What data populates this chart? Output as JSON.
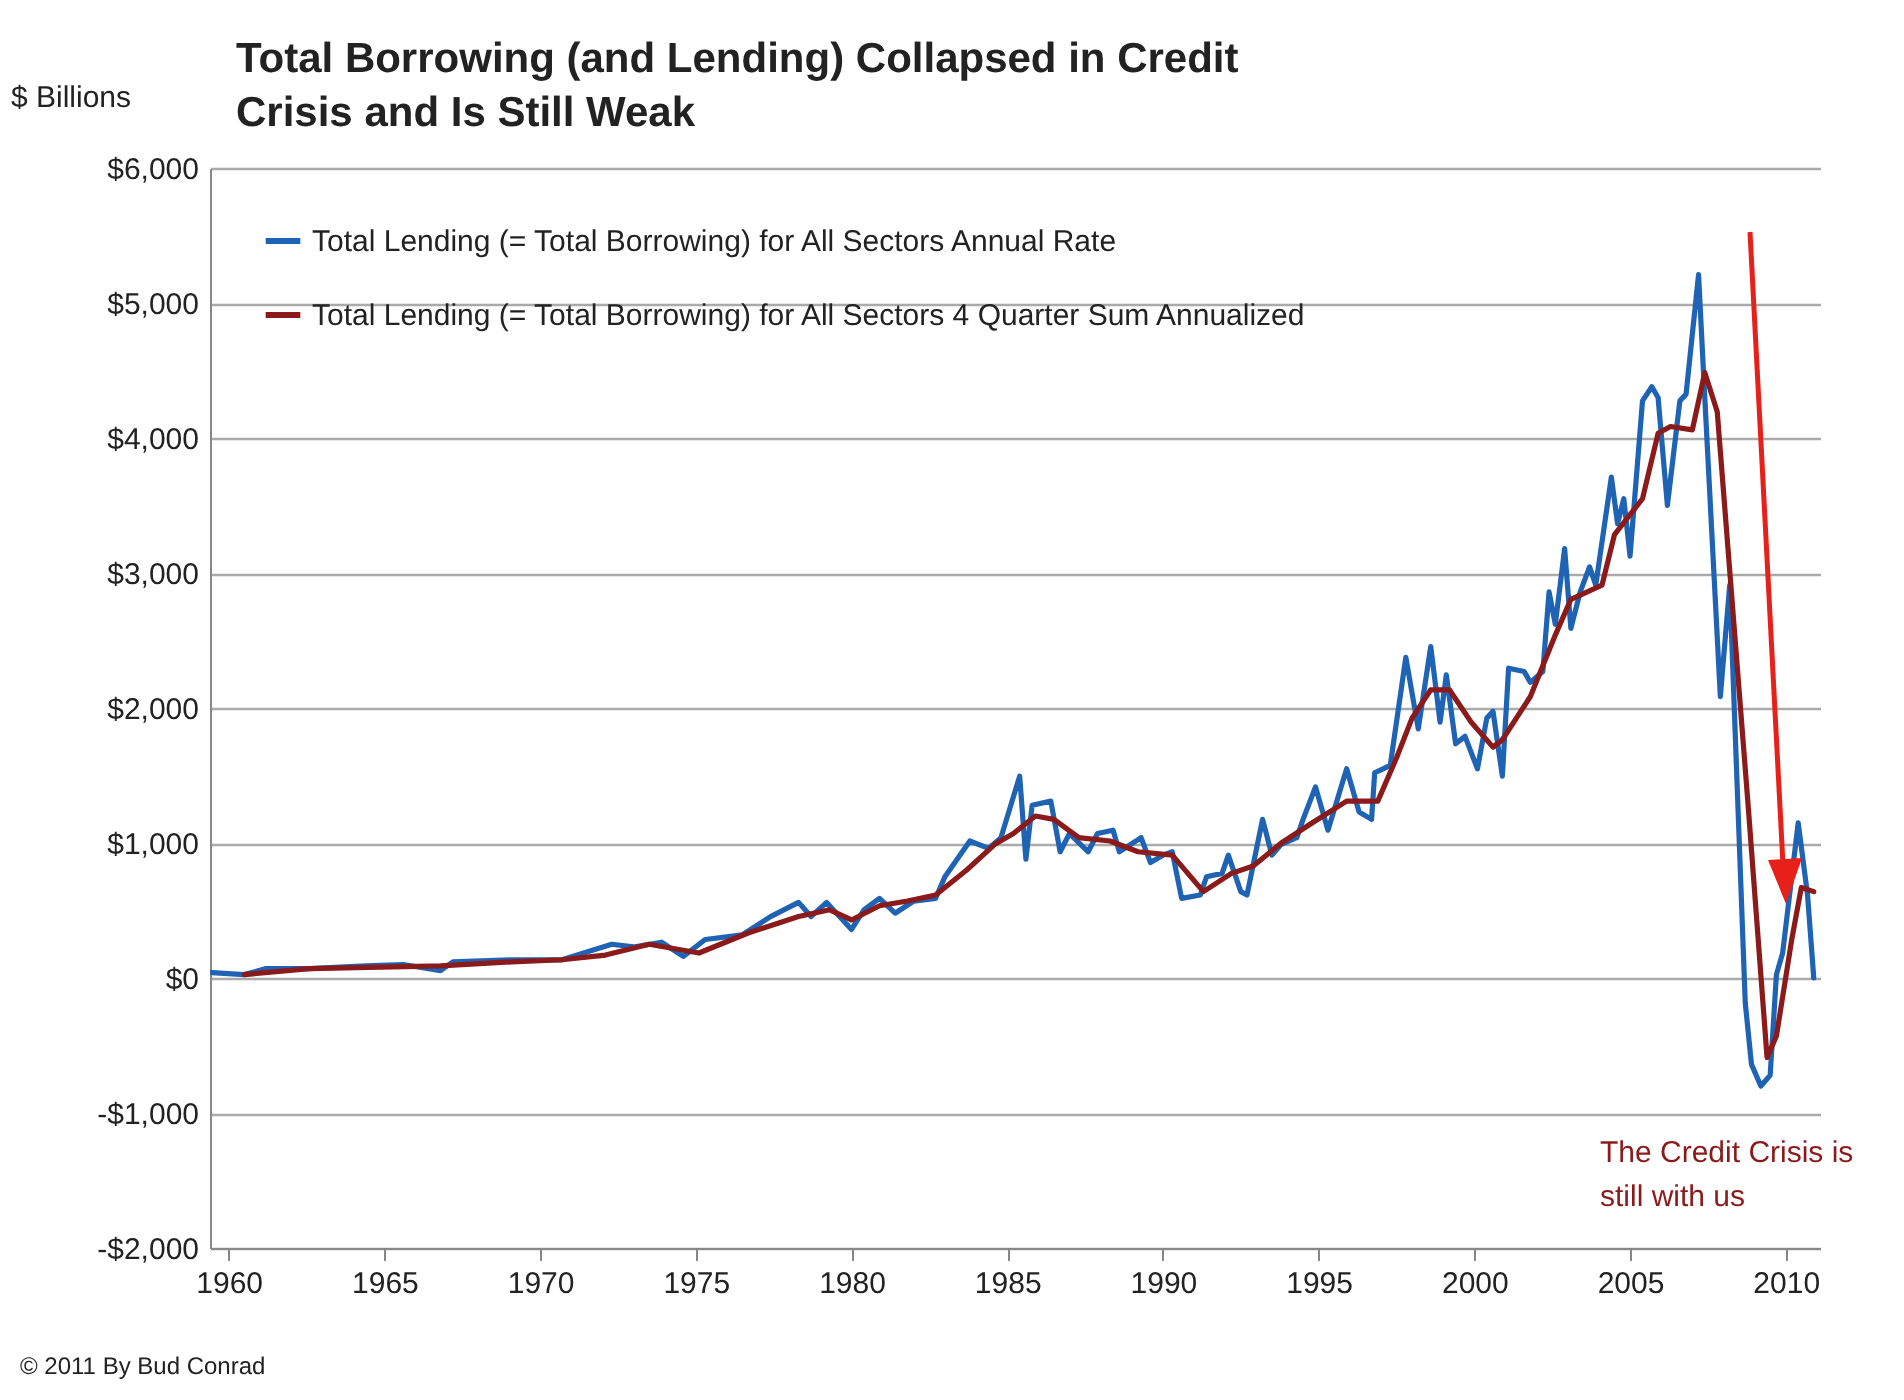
{
  "chart_data": {
    "type": "line",
    "title": "Total Borrowing (and Lending) Collapsed in Credit Crisis and Is Still Weak",
    "ylabel": "$ Billions",
    "xlim": [
      1959.4,
      2011.1
    ],
    "xticks": [
      1960,
      1965,
      1970,
      1975,
      1980,
      1985,
      1990,
      1995,
      2000,
      2005,
      2010
    ],
    "ylim": [
      -2000,
      6000
    ],
    "yticks": [
      {
        "value": -2000,
        "label": "-$2,000"
      },
      {
        "value": -1000,
        "label": "-$1,000"
      },
      {
        "value": 0,
        "label": "$0"
      },
      {
        "value": 1000,
        "label": "$1,000"
      },
      {
        "value": 2000,
        "label": "$2,000"
      },
      {
        "value": 3000,
        "label": "$3,000"
      },
      {
        "value": 4000,
        "label": "$4,000"
      },
      {
        "value": 5000,
        "label": "$5,000"
      },
      {
        "value": 6000,
        "label": "$6,000"
      }
    ],
    "grid": "y",
    "legend": "top left",
    "line_style": "solid",
    "series": [
      {
        "name": "Total Lending (= Total Borrowing) for All Sectors Annual Rate",
        "color": "#1f64b4",
        "x": [
          1959.46,
          1960.5,
          1961.2,
          1962.6,
          1964.4,
          1965.6,
          1966.8,
          1967.2,
          1969.1,
          1970.7,
          1971.4,
          1972.3,
          1973.0,
          1973.9,
          1974.6,
          1975.3,
          1976.5,
          1977.4,
          1978.3,
          1978.7,
          1979.2,
          1980.0,
          1980.4,
          1980.9,
          1981.4,
          1982.0,
          1982.7,
          1983.0,
          1983.8,
          1984.4,
          1984.8,
          1985.4,
          1985.6,
          1985.8,
          1986.4,
          1986.7,
          1987.0,
          1987.6,
          1987.9,
          1988.4,
          1988.6,
          1989.3,
          1989.6,
          1990.0,
          1990.3,
          1990.6,
          1991.2,
          1991.4,
          1991.9,
          1992.1,
          1992.5,
          1992.7,
          1993.2,
          1993.5,
          1993.8,
          1994.3,
          1994.5,
          1994.9,
          1995.3,
          1995.9,
          1996.3,
          1996.7,
          1996.8,
          1997.3,
          1997.8,
          1998.2,
          1998.6,
          1998.9,
          1999.1,
          1999.4,
          1999.7,
          2000.1,
          2000.4,
          2000.6,
          2000.9,
          2001.1,
          2001.6,
          2001.8,
          2002.2,
          2002.4,
          2002.6,
          2002.9,
          2003.1,
          2003.4,
          2003.7,
          2003.9,
          2004.4,
          2004.6,
          2004.8,
          2005.0,
          2005.4,
          2005.7,
          2005.9,
          2006.2,
          2006.6,
          2006.8,
          2007.2,
          2007.4,
          2007.9,
          2008.2,
          2008.7,
          2008.9,
          2009.2,
          2009.5,
          2009.7,
          2009.9,
          2010.4,
          2010.7,
          2010.9
        ],
        "values": [
          40,
          25,
          70,
          70,
          90,
          100,
          55,
          120,
          135,
          135,
          185,
          250,
          230,
          265,
          160,
          285,
          320,
          455,
          560,
          455,
          560,
          360,
          505,
          590,
          480,
          570,
          590,
          750,
          1015,
          960,
          1040,
          1495,
          880,
          1280,
          1310,
          935,
          1070,
          935,
          1070,
          1095,
          935,
          1040,
          855,
          910,
          935,
          590,
          615,
          750,
          775,
          910,
          640,
          615,
          1175,
          910,
          990,
          1040,
          1175,
          1415,
          1095,
          1550,
          1230,
          1175,
          1520,
          1575,
          2375,
          1845,
          2455,
          1895,
          2245,
          1735,
          1790,
          1550,
          1925,
          1975,
          1495,
          2295,
          2270,
          2190,
          2270,
          2860,
          2620,
          3180,
          2590,
          2860,
          3045,
          2910,
          3710,
          3365,
          3550,
          3125,
          4275,
          4380,
          4300,
          3500,
          4275,
          4325,
          5210,
          4300,
          2085,
          2910,
          -185,
          -640,
          -800,
          -720,
          25,
          185,
          1150,
          615,
          0
        ]
      },
      {
        "name": "Total Lending (= Total Borrowing) for All Sectors 4 Quarter Sum Annualized",
        "color": "#8b1a1a",
        "x": [
          1960.5,
          1962.6,
          1966.8,
          1969.1,
          1970.7,
          1972.1,
          1973.5,
          1975.1,
          1976.7,
          1978.3,
          1979.3,
          1980.0,
          1980.9,
          1981.8,
          1982.7,
          1983.7,
          1984.6,
          1985.2,
          1985.9,
          1986.5,
          1987.3,
          1988.3,
          1989.2,
          1990.3,
          1991.3,
          1992.2,
          1992.9,
          1993.8,
          1994.8,
          1995.9,
          1996.9,
          1997.5,
          1998.0,
          1998.6,
          1999.2,
          1999.9,
          2000.6,
          2000.9,
          2001.8,
          2002.6,
          2003.1,
          2004.1,
          2004.5,
          2005.4,
          2005.9,
          2006.3,
          2007.0,
          2007.4,
          2007.8,
          2008.2,
          2008.8,
          2009.4,
          2009.7,
          2010.2,
          2010.5,
          2010.9
        ],
        "values": [
          25,
          70,
          90,
          120,
          135,
          170,
          250,
          185,
          335,
          455,
          505,
          430,
          535,
          570,
          615,
          800,
          990,
          1070,
          1200,
          1175,
          1040,
          1015,
          935,
          910,
          640,
          775,
          830,
          1000,
          1150,
          1310,
          1310,
          1630,
          1925,
          2135,
          2135,
          1895,
          1710,
          1765,
          2085,
          2540,
          2805,
          2910,
          3285,
          3550,
          4035,
          4085,
          4060,
          4485,
          4195,
          3020,
          1255,
          -590,
          -430,
          295,
          670,
          640
        ]
      }
    ],
    "annotations": [
      "The Credit Crisis is still with us",
      "© 2011 By Bud Conrad"
    ]
  }
}
